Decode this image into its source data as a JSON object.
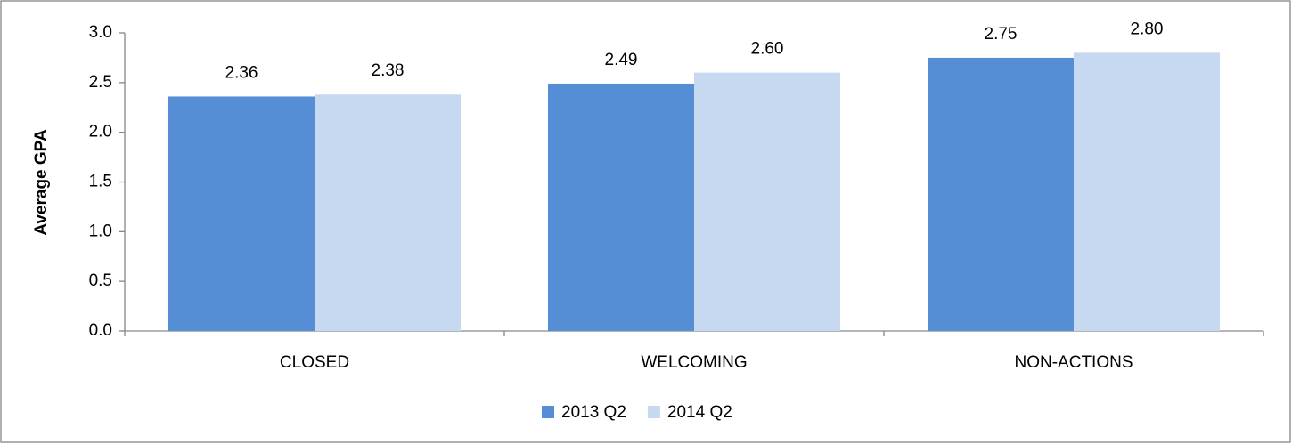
{
  "chart_data": {
    "type": "bar",
    "y_label": "Average GPA",
    "categories": [
      "CLOSED",
      "WELCOMING",
      "NON-ACTIONS"
    ],
    "series": [
      {
        "name": "2013 Q2",
        "color": "#558ed5",
        "values": [
          2.36,
          2.49,
          2.75
        ],
        "value_labels": [
          "2.36",
          "2.49",
          "2.75"
        ]
      },
      {
        "name": "2014 Q2",
        "color": "#c6d9f1",
        "values": [
          2.38,
          2.6,
          2.8
        ],
        "value_labels": [
          "2.38",
          "2.60",
          "2.80"
        ]
      }
    ],
    "ylim": [
      0,
      3
    ],
    "yticks": [
      {
        "value": 0,
        "label": "0.0"
      },
      0.5,
      {
        "value": 1,
        "label": "1.0"
      },
      1.5,
      {
        "value": 2,
        "label": "2.0"
      },
      2.5,
      {
        "value": 3,
        "label": "3.0"
      }
    ],
    "grid": false,
    "legend": "bottom"
  }
}
